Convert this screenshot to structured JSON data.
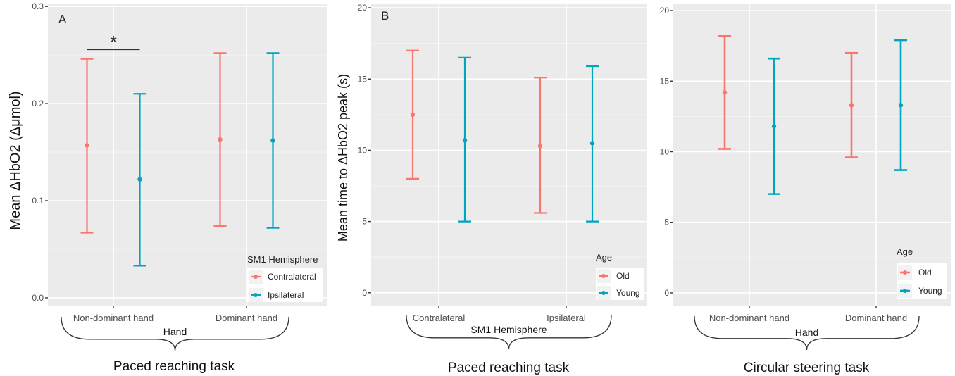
{
  "chart_data": [
    {
      "type": "errorbar",
      "panel_letter": "A",
      "ylabel": "Mean ΔHbO2 (Δμmol)",
      "xlabel": "Hand",
      "caption": "Paced reaching task",
      "categories": [
        "Non-dominant hand",
        "Dominant hand"
      ],
      "ylim": [
        -0.008,
        0.303
      ],
      "yticks": [
        "0.0",
        "0.1",
        "0.2",
        "0.3"
      ],
      "legend": {
        "title": "SM1 Hemisphere",
        "position": "bottom-right"
      },
      "series": [
        {
          "name": "Contralateral",
          "color": "#F8766D",
          "mean": [
            0.157,
            0.163
          ],
          "lower": [
            0.067,
            0.074
          ],
          "upper": [
            0.246,
            0.252
          ]
        },
        {
          "name": "Ipsilateral",
          "color": "#00A5C0",
          "mean": [
            0.122,
            0.162
          ],
          "lower": [
            0.033,
            0.072
          ],
          "upper": [
            0.21,
            0.252
          ]
        }
      ],
      "annotation": {
        "text": "*",
        "between": [
          "Contralateral",
          "Ipsilateral"
        ],
        "category": "Non-dominant hand",
        "y": 0.2555
      }
    },
    {
      "type": "errorbar",
      "panel_letter": "B",
      "ylabel": "Mean time to ΔHbO2 peak (s)",
      "xlabel": "SM1 Hemisphere",
      "caption": "Paced reaching task",
      "categories": [
        "Contralateral",
        "Ipsilateral"
      ],
      "ylim": [
        -0.9,
        20.3
      ],
      "yticks": [
        "0",
        "5",
        "10",
        "15",
        "20"
      ],
      "legend": {
        "title": "Age",
        "position": "bottom-right"
      },
      "series": [
        {
          "name": "Old",
          "color": "#F8766D",
          "mean": [
            12.5,
            10.3
          ],
          "lower": [
            8.0,
            5.6
          ],
          "upper": [
            17.0,
            15.1
          ]
        },
        {
          "name": "Young",
          "color": "#00A5C0",
          "mean": [
            10.7,
            10.5
          ],
          "lower": [
            5.0,
            5.0
          ],
          "upper": [
            16.5,
            15.9
          ]
        }
      ]
    },
    {
      "type": "errorbar",
      "panel_letter": "",
      "ylabel": "",
      "xlabel": "Hand",
      "caption": "Circular steering task",
      "categories": [
        "Non-dominant hand",
        "Dominant hand"
      ],
      "ylim": [
        -0.9,
        20.5
      ],
      "yticks": [
        "0",
        "5",
        "10",
        "15",
        "20"
      ],
      "legend": {
        "title": "Age",
        "position": "bottom-right"
      },
      "series": [
        {
          "name": "Old",
          "color": "#F8766D",
          "mean": [
            14.2,
            13.3
          ],
          "lower": [
            10.2,
            9.6
          ],
          "upper": [
            18.2,
            17.0
          ]
        },
        {
          "name": "Young",
          "color": "#00A5C0",
          "mean": [
            11.8,
            13.3
          ],
          "lower": [
            7.0,
            8.7
          ],
          "upper": [
            16.6,
            17.9
          ]
        }
      ]
    }
  ]
}
